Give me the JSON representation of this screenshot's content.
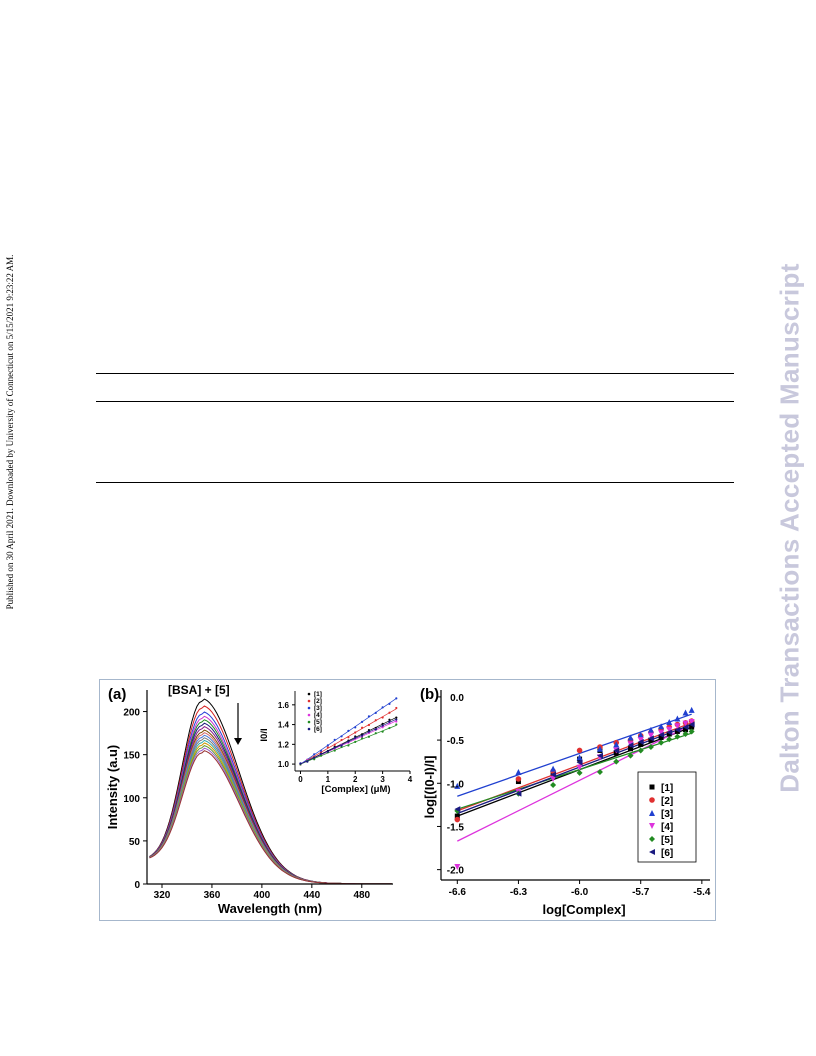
{
  "side_note": "Published on 30 April 2021. Downloaded by University of Connecticut on 5/15/2021 9:23:22 AM.",
  "watermark": "Dalton Transactions Accepted Manuscript",
  "chart_data": [
    {
      "type": "line",
      "panel_label": "(a)",
      "annotation": "[BSA] + [5]",
      "xlabel": "Wavelength (nm)",
      "ylabel": "Intensity (a.u)",
      "xlim": [
        308,
        505
      ],
      "ylim": [
        0,
        225
      ],
      "xticks": [
        "320",
        "360",
        "400",
        "440",
        "480"
      ],
      "yticks": [
        "0",
        "50",
        "100",
        "150",
        "200"
      ],
      "peak_x": 352,
      "start_value": 27,
      "peak_values": [
        212,
        204,
        197,
        192,
        188,
        184,
        180,
        176,
        173,
        170,
        167,
        164,
        161,
        158,
        155,
        152
      ],
      "colors": [
        "#000000",
        "#d42020",
        "#2a3fd8",
        "#cc33cc",
        "#1f8a1f",
        "#1a1a7a",
        "#8a1a8a",
        "#7a4a00",
        "#d46a6a",
        "#4a7ad8",
        "#7a7a7a",
        "#33aaaa",
        "#cc9900",
        "#669933",
        "#9966cc",
        "#993333"
      ]
    },
    {
      "type": "scatter",
      "inset": true,
      "xlabel": "[Complex] (μM)",
      "ylabel": "I0/I",
      "xlim": [
        -0.2,
        4
      ],
      "ylim": [
        0.93,
        1.74
      ],
      "xticks": [
        "0",
        "1",
        "2",
        "3",
        "4"
      ],
      "yticks": [
        "1.0",
        "1.2",
        "1.4",
        "1.6"
      ],
      "x": [
        0,
        0.25,
        0.5,
        0.75,
        1.0,
        1.25,
        1.5,
        1.75,
        2.0,
        2.25,
        2.5,
        2.75,
        3.0,
        3.25,
        3.5
      ],
      "series": [
        {
          "name": "[1]",
          "color": "#000000",
          "slope": 0.135
        },
        {
          "name": "[2]",
          "color": "#e03030",
          "slope": 0.16
        },
        {
          "name": "[3]",
          "color": "#2040d0",
          "slope": 0.19
        },
        {
          "name": "[4]",
          "color": "#dd33dd",
          "slope": 0.125
        },
        {
          "name": "[5]",
          "color": "#228b22",
          "slope": 0.112
        },
        {
          "name": "[6]",
          "color": "#1a1a80",
          "slope": 0.13
        }
      ]
    },
    {
      "type": "scatter",
      "panel_label": "(b)",
      "xlabel": "log[Complex]",
      "ylabel": "log[(I0-I)/I]",
      "xlim": [
        -6.68,
        -5.36
      ],
      "ylim": [
        -2.12,
        0.08
      ],
      "xticks": [
        "-6.6",
        "-6.3",
        "-6.0",
        "-5.7",
        "-5.4"
      ],
      "yticks": [
        "0.0",
        "-0.5",
        "-1.0",
        "-1.5",
        "-2.0"
      ],
      "x": [
        -6.6,
        -6.3,
        -6.13,
        -6.0,
        -5.9,
        -5.82,
        -5.75,
        -5.7,
        -5.65,
        -5.6,
        -5.56,
        -5.52,
        -5.48,
        -5.45
      ],
      "series": [
        {
          "name": "[1]",
          "color": "#000000",
          "marker": "square",
          "line": [
            -1.38,
            -0.35
          ],
          "y": [
            -1.38,
            -0.98,
            -0.88,
            -0.72,
            -0.62,
            -0.65,
            -0.6,
            -0.55,
            -0.5,
            -0.47,
            -0.43,
            -0.4,
            -0.38,
            -0.35
          ]
        },
        {
          "name": "[2]",
          "color": "#e03030",
          "marker": "circle",
          "line": [
            -1.32,
            -0.3
          ],
          "y": [
            -1.42,
            -0.95,
            -0.86,
            -0.62,
            -0.58,
            -0.53,
            -0.5,
            -0.45,
            -0.41,
            -0.37,
            -0.35,
            -0.32,
            -0.3,
            -0.28
          ]
        },
        {
          "name": "[3]",
          "color": "#2040d0",
          "marker": "triangle",
          "line": [
            -1.15,
            -0.2
          ],
          "y": [
            -1.03,
            -0.87,
            -0.83,
            -0.7,
            -0.6,
            -0.55,
            -0.47,
            -0.44,
            -0.38,
            -0.34,
            -0.29,
            -0.25,
            -0.18,
            -0.15
          ]
        },
        {
          "name": "[4]",
          "color": "#dd33dd",
          "marker": "triangle-down",
          "line": [
            -1.67,
            -0.32
          ],
          "y": [
            -1.97,
            -1.1,
            -0.95,
            -0.82,
            -0.7,
            -0.62,
            -0.55,
            -0.5,
            -0.45,
            -0.42,
            -0.38,
            -0.34,
            -0.31,
            -0.29
          ]
        },
        {
          "name": "[5]",
          "color": "#228b22",
          "marker": "diamond",
          "line": [
            -1.3,
            -0.42
          ],
          "y": [
            -1.32,
            -1.12,
            -1.02,
            -0.88,
            -0.87,
            -0.75,
            -0.68,
            -0.62,
            -0.58,
            -0.53,
            -0.49,
            -0.46,
            -0.43,
            -0.4
          ]
        },
        {
          "name": "[6]",
          "color": "#1a1a80",
          "marker": "triangle-left",
          "line": [
            -1.35,
            -0.32
          ],
          "y": [
            -1.3,
            -1.12,
            -0.9,
            -0.76,
            -0.68,
            -0.62,
            -0.56,
            -0.52,
            -0.48,
            -0.44,
            -0.41,
            -0.38,
            -0.35,
            -0.32
          ]
        }
      ]
    }
  ]
}
